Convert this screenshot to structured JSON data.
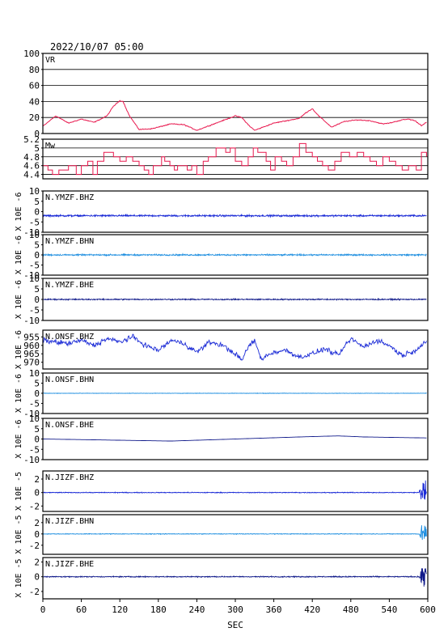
{
  "header": {
    "timestamp": "2022/10/07 05:00"
  },
  "chart_data": {
    "type": "line",
    "xlabel": "SEC",
    "xlim": [
      0,
      600
    ],
    "xticks": [
      0,
      60,
      120,
      180,
      240,
      300,
      360,
      420,
      480,
      540,
      600
    ],
    "panels": [
      {
        "id": "vr",
        "label": "VR",
        "kind": "smooth",
        "ylim": [
          0,
          100
        ],
        "yticks": [
          0,
          20,
          40,
          60,
          80,
          100
        ],
        "grid": true,
        "ylabel": "",
        "color": "#e8184e",
        "x": [
          0,
          20,
          40,
          60,
          80,
          100,
          110,
          120,
          125,
          135,
          150,
          170,
          200,
          220,
          240,
          260,
          280,
          300,
          310,
          320,
          330,
          340,
          360,
          380,
          400,
          410,
          420,
          430,
          450,
          470,
          490,
          510,
          530,
          540,
          560,
          570,
          580,
          590,
          600
        ],
        "y": [
          9,
          22,
          13,
          18,
          14,
          22,
          34,
          41,
          40,
          22,
          5,
          6,
          12,
          11,
          4,
          10,
          16,
          22,
          20,
          11,
          4,
          7,
          13,
          16,
          19,
          26,
          31,
          22,
          8,
          15,
          17,
          16,
          12,
          13,
          17,
          18,
          16,
          10,
          15
        ]
      },
      {
        "id": "mw",
        "label": "Mw",
        "kind": "step",
        "ylim": [
          4.3,
          5.2
        ],
        "yticks": [
          4.4,
          4.6,
          4.8,
          5.0,
          5.2
        ],
        "grid": true,
        "ylabel": "",
        "color": "#e8184e",
        "x": [
          0,
          8,
          15,
          25,
          40,
          52,
          60,
          70,
          78,
          85,
          95,
          110,
          120,
          130,
          140,
          150,
          158,
          165,
          172,
          185,
          190,
          198,
          205,
          210,
          225,
          232,
          240,
          250,
          258,
          270,
          285,
          292,
          300,
          310,
          320,
          328,
          335,
          348,
          355,
          362,
          372,
          380,
          390,
          400,
          410,
          420,
          428,
          436,
          445,
          455,
          465,
          478,
          490,
          500,
          510,
          520,
          530,
          540,
          550,
          560,
          570,
          582,
          590,
          598
        ],
        "y": [
          4.6,
          4.5,
          4.4,
          4.5,
          4.6,
          4.4,
          4.6,
          4.7,
          4.4,
          4.7,
          4.9,
          4.8,
          4.7,
          4.8,
          4.7,
          4.6,
          4.5,
          4.4,
          4.6,
          4.8,
          4.7,
          4.6,
          4.5,
          4.6,
          4.5,
          4.6,
          4.4,
          4.7,
          4.8,
          5.0,
          4.9,
          5.0,
          4.7,
          4.6,
          4.8,
          5.0,
          4.9,
          4.7,
          4.5,
          4.8,
          4.7,
          4.6,
          4.8,
          5.1,
          4.9,
          4.8,
          4.7,
          4.6,
          4.5,
          4.7,
          4.9,
          4.8,
          4.9,
          4.8,
          4.7,
          4.6,
          4.8,
          4.7,
          4.6,
          4.5,
          4.6,
          4.5,
          4.9,
          4.8
        ]
      },
      {
        "id": "ymzf_bhz",
        "label": "N.YMZF.BHZ",
        "kind": "noise",
        "ylim": [
          -10,
          10
        ],
        "yticks": [
          -10,
          -5,
          0,
          5,
          10
        ],
        "grid": false,
        "ylabel": "X 10E -6",
        "color": "#1a2ad6",
        "baseline": -2,
        "amp": 0.6
      },
      {
        "id": "ymzf_bhn",
        "label": "N.YMZF.BHN",
        "kind": "noise",
        "ylim": [
          -10,
          10
        ],
        "yticks": [
          -10,
          -5,
          0,
          5,
          10
        ],
        "grid": false,
        "ylabel": "X 10E -6",
        "color": "#1f8fe0",
        "baseline": 0,
        "amp": 0.5
      },
      {
        "id": "ymzf_bhe",
        "label": "N.YMZF.BHE",
        "kind": "noise",
        "ylim": [
          -10,
          10
        ],
        "yticks": [
          -10,
          -5,
          0,
          5,
          10
        ],
        "grid": false,
        "ylabel": "X 10E -6",
        "color": "#101a8a",
        "baseline": 0,
        "amp": 0.4
      },
      {
        "id": "onsf_bhz",
        "label": "N.ONSF.BHZ",
        "kind": "wander",
        "ylim": [
          -974,
          -951
        ],
        "yticks": [
          -955,
          -960,
          -965,
          -970
        ],
        "grid": false,
        "ylabel": "X 10E -6",
        "color": "#1a2ad6",
        "x": [
          0,
          20,
          40,
          60,
          80,
          100,
          120,
          140,
          160,
          180,
          200,
          220,
          240,
          260,
          280,
          300,
          310,
          320,
          330,
          340,
          360,
          380,
          400,
          420,
          440,
          460,
          480,
          500,
          520,
          540,
          560,
          580,
          600
        ],
        "y": [
          -957,
          -958,
          -959,
          -957,
          -960,
          -956,
          -958,
          -955,
          -960,
          -963,
          -957,
          -959,
          -964,
          -958,
          -960,
          -965,
          -969,
          -961,
          -957,
          -968,
          -964,
          -963,
          -967,
          -965,
          -962,
          -966,
          -956,
          -961,
          -957,
          -960,
          -966,
          -963,
          -957
        ]
      },
      {
        "id": "onsf_bhn",
        "label": "N.ONSF.BHN",
        "kind": "noise",
        "ylim": [
          -10,
          10
        ],
        "yticks": [
          -10,
          -5,
          0,
          5,
          10
        ],
        "grid": false,
        "ylabel": "X 10E -6",
        "color": "#1f8fe0",
        "baseline": 0,
        "amp": 0.15
      },
      {
        "id": "onsf_bhe",
        "label": "N.ONSF.BHE",
        "kind": "drift",
        "ylim": [
          -10,
          10
        ],
        "yticks": [
          -10,
          -5,
          0,
          5,
          10
        ],
        "grid": false,
        "ylabel": "X 10E -6",
        "color": "#101a8a",
        "x": [
          0,
          100,
          200,
          300,
          400,
          460,
          500,
          600
        ],
        "y": [
          0,
          -0.5,
          -1,
          0,
          1,
          1.5,
          1,
          0.5
        ]
      },
      {
        "id": "jizf_bhz",
        "label": "N.JIZF.BHZ",
        "kind": "noise_burst",
        "ylim": [
          -2.8,
          3.2
        ],
        "yticks": [
          -2,
          0,
          2
        ],
        "grid": false,
        "ylabel": "X 10E -5",
        "color": "#1a2ad6",
        "baseline": 0,
        "amp": 0.08,
        "burst_start": 587,
        "burst_amp": 2.8
      },
      {
        "id": "jizf_bhn",
        "label": "N.JIZF.BHN",
        "kind": "noise_burst",
        "ylim": [
          -3.6,
          3.4
        ],
        "yticks": [
          -2,
          0,
          2
        ],
        "grid": false,
        "ylabel": "X 10E -5",
        "color": "#1f8fe0",
        "baseline": 0,
        "amp": 0.08,
        "burst_start": 587,
        "burst_amp": 2.4
      },
      {
        "id": "jizf_bhe",
        "label": "N.JIZF.BHE",
        "kind": "noise_burst",
        "ylim": [
          -3.0,
          2.6
        ],
        "yticks": [
          -2,
          0,
          2
        ],
        "grid": false,
        "ylabel": "X 10E -5",
        "color": "#101a8a",
        "baseline": 0,
        "amp": 0.1,
        "burst_start": 587,
        "burst_amp": 2.2
      }
    ]
  }
}
